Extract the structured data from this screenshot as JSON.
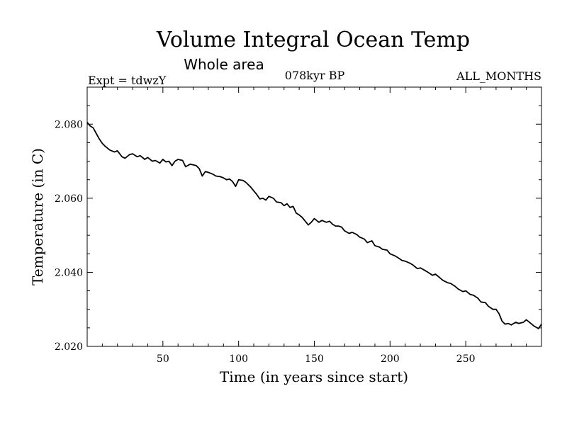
{
  "chart_data": {
    "type": "line",
    "title": "Volume Integral Ocean Temp",
    "subtitle": "Whole area",
    "annotations": {
      "left": "Expt = tdwzY",
      "center": "078kyr BP",
      "right": "ALL_MONTHS"
    },
    "xlabel": "Time (in years since start)",
    "ylabel": "Temperature (in C)",
    "xlim": [
      0,
      300
    ],
    "ylim": [
      2.02,
      2.09
    ],
    "xticks": [
      50,
      100,
      150,
      200,
      250
    ],
    "yticks": [
      2.02,
      2.04,
      2.06,
      2.08
    ],
    "xtick_labels": [
      "50",
      "100",
      "150",
      "200",
      "250"
    ],
    "ytick_labels": [
      "2.020",
      "2.040",
      "2.060",
      "2.080"
    ],
    "grid": false,
    "series": [
      {
        "color": "#000000",
        "x": [
          0,
          2,
          4,
          6,
          8,
          10,
          12,
          15,
          18,
          20,
          23,
          25,
          28,
          30,
          33,
          35,
          38,
          40,
          43,
          45,
          48,
          50,
          52,
          54,
          56,
          58,
          60,
          63,
          65,
          68,
          70,
          72,
          74,
          76,
          78,
          80,
          83,
          85,
          88,
          90,
          92,
          94,
          96,
          98,
          100,
          103,
          105,
          108,
          110,
          112,
          114,
          116,
          118,
          120,
          123,
          125,
          128,
          130,
          132,
          134,
          136,
          138,
          140,
          142,
          144,
          146,
          148,
          150,
          153,
          155,
          158,
          160,
          162,
          164,
          166,
          168,
          170,
          173,
          175,
          178,
          180,
          183,
          185,
          188,
          190,
          193,
          195,
          198,
          200,
          203,
          205,
          208,
          210,
          213,
          215,
          218,
          220,
          223,
          225,
          228,
          230,
          233,
          235,
          238,
          240,
          243,
          245,
          248,
          250,
          253,
          255,
          258,
          260,
          263,
          265,
          268,
          270,
          272,
          274,
          276,
          278,
          280,
          283,
          285,
          288,
          290,
          293,
          295,
          298,
          300
        ],
        "y": [
          2.0805,
          2.0795,
          2.079,
          2.0775,
          2.076,
          2.0748,
          2.074,
          2.073,
          2.0725,
          2.0728,
          2.0712,
          2.0708,
          2.0718,
          2.072,
          2.0712,
          2.0715,
          2.0705,
          2.071,
          2.07,
          2.0702,
          2.0695,
          2.0705,
          2.0698,
          2.07,
          2.0688,
          2.07,
          2.0705,
          2.0702,
          2.0685,
          2.0692,
          2.069,
          2.0688,
          2.068,
          2.066,
          2.0672,
          2.067,
          2.0665,
          2.066,
          2.0658,
          2.0655,
          2.065,
          2.0652,
          2.0645,
          2.0632,
          2.065,
          2.0648,
          2.0642,
          2.063,
          2.062,
          2.061,
          2.0598,
          2.06,
          2.0595,
          2.0605,
          2.06,
          2.059,
          2.0588,
          2.058,
          2.0585,
          2.0575,
          2.0578,
          2.056,
          2.0555,
          2.0548,
          2.0538,
          2.0528,
          2.0535,
          2.0545,
          2.0535,
          2.054,
          2.0535,
          2.0538,
          2.053,
          2.0525,
          2.0525,
          2.0522,
          2.0512,
          2.0505,
          2.0508,
          2.0502,
          2.0495,
          2.049,
          2.048,
          2.0485,
          2.0472,
          2.0468,
          2.0462,
          2.046,
          2.045,
          2.0445,
          2.044,
          2.0432,
          2.043,
          2.0425,
          2.042,
          2.041,
          2.0412,
          2.0405,
          2.04,
          2.0392,
          2.0395,
          2.0385,
          2.0378,
          2.0372,
          2.037,
          2.0362,
          2.0355,
          2.0348,
          2.035,
          2.034,
          2.0338,
          2.033,
          2.032,
          2.0318,
          2.0308,
          2.03,
          2.03,
          2.0288,
          2.0268,
          2.026,
          2.0262,
          2.0258,
          2.0265,
          2.0262,
          2.0265,
          2.0272,
          2.0262,
          2.0255,
          2.0248,
          2.026
        ]
      }
    ]
  }
}
